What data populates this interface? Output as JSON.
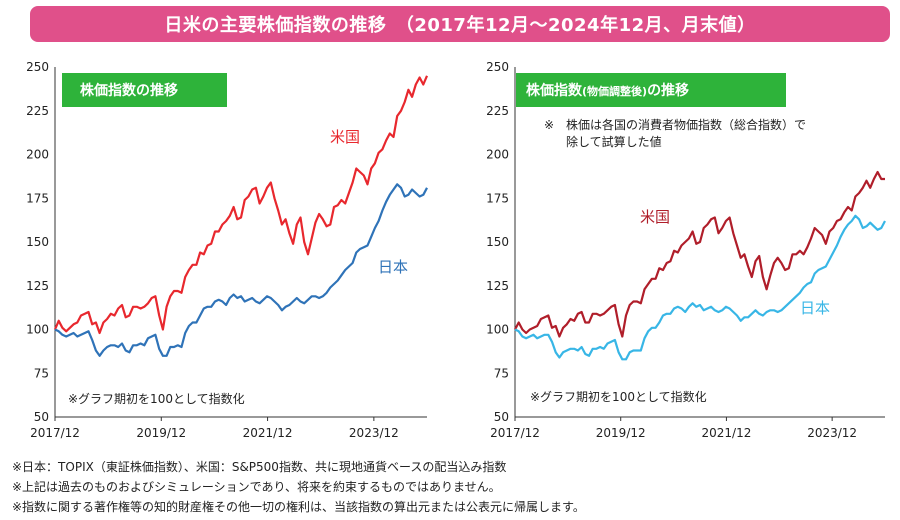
{
  "banner": {
    "title": "日米の主要株価指数の推移　（2017年12月～2024年12月、月末値）"
  },
  "colors": {
    "banner": "#e0508a",
    "title_box": "#2eb33a",
    "us_left": "#e8282e",
    "jp_left": "#2f73b8",
    "us_right": "#b01e2a",
    "jp_right": "#38b6e6"
  },
  "footnotes": [
    "※日本：TOPIX（東証株価指数）、米国：S&P500指数、共に現地通貨ベースの配当込み指数",
    "※上記は過去のものおよびシミュレーションであり、将来を約束するものではありません。",
    "※指数に関する著作権等の知的財産権その他一切の権利は、当該指数の算出元または公表元に帰属します。"
  ],
  "chart_data": [
    {
      "type": "line",
      "title": "株価指数の推移",
      "note": "※グラフ期初を100として指数化",
      "x_ticks": [
        "2017/12",
        "2019/12",
        "2021/12",
        "2023/12"
      ],
      "xlim": [
        "2017/12",
        "2024/12"
      ],
      "ylim": [
        50,
        250
      ],
      "y_ticks": [
        "50",
        "75",
        "100",
        "125",
        "150",
        "175",
        "200",
        "225",
        "250"
      ],
      "grid": false,
      "series": [
        {
          "name": "米国",
          "color": "#e8282e",
          "values": [
            100,
            105,
            101,
            99,
            101,
            103,
            104,
            108,
            109,
            110,
            103,
            104,
            98,
            104,
            106,
            109,
            108,
            112,
            114,
            107,
            108,
            113,
            113,
            112,
            113,
            115,
            118,
            119,
            108,
            100,
            113,
            119,
            122,
            122,
            121,
            130,
            134,
            137,
            137,
            144,
            143,
            148,
            149,
            156,
            156,
            160,
            162,
            165,
            170,
            163,
            164,
            174,
            176,
            180,
            181,
            172,
            176,
            181,
            184,
            175,
            168,
            160,
            163,
            155,
            149,
            160,
            164,
            150,
            143,
            152,
            161,
            166,
            163,
            159,
            160,
            170,
            171,
            174,
            172,
            178,
            184,
            192,
            190,
            188,
            183,
            192,
            195,
            201,
            203,
            208,
            212,
            210,
            222,
            225,
            230,
            237,
            233,
            240,
            244,
            240,
            245
          ]
        },
        {
          "name": "日本",
          "color": "#2f73b8",
          "values": [
            100,
            99,
            97,
            96,
            97,
            98,
            96,
            97,
            98,
            99,
            94,
            88,
            85,
            88,
            90,
            91,
            91,
            90,
            92,
            88,
            87,
            91,
            91,
            92,
            91,
            95,
            96,
            97,
            89,
            85,
            85,
            90,
            90,
            91,
            90,
            98,
            102,
            104,
            104,
            108,
            112,
            113,
            113,
            116,
            117,
            116,
            114,
            118,
            120,
            118,
            119,
            116,
            117,
            118,
            116,
            115,
            117,
            119,
            118,
            116,
            114,
            111,
            113,
            114,
            116,
            118,
            116,
            115,
            117,
            119,
            119,
            118,
            119,
            121,
            124,
            126,
            128,
            131,
            134,
            136,
            138,
            144,
            146,
            147,
            148,
            153,
            158,
            162,
            168,
            173,
            177,
            180,
            183,
            181,
            176,
            177,
            180,
            178,
            176,
            177,
            181
          ]
        }
      ]
    },
    {
      "type": "line",
      "title": "株価指数",
      "title_small": "(物価調整後)",
      "title_suffix": "の推移",
      "note": "※グラフ期初を100として指数化",
      "annotation_lines": [
        "※　株価は各国の消費者物価指数（総合指数）で",
        "除して試算した値"
      ],
      "x_ticks": [
        "2017/12",
        "2019/12",
        "2021/12",
        "2023/12"
      ],
      "xlim": [
        "2017/12",
        "2024/12"
      ],
      "ylim": [
        50,
        250
      ],
      "y_ticks": [
        "50",
        "75",
        "100",
        "125",
        "150",
        "175",
        "200",
        "225",
        "250"
      ],
      "grid": false,
      "series": [
        {
          "name": "米国",
          "color": "#b01e2a",
          "values": [
            100,
            104,
            100,
            98,
            100,
            101,
            102,
            106,
            107,
            108,
            101,
            102,
            96,
            101,
            103,
            106,
            105,
            109,
            110,
            104,
            104,
            109,
            109,
            108,
            109,
            111,
            113,
            114,
            103,
            96,
            108,
            114,
            116,
            116,
            115,
            123,
            126,
            129,
            129,
            135,
            134,
            138,
            139,
            145,
            144,
            148,
            150,
            152,
            156,
            149,
            150,
            158,
            160,
            163,
            164,
            155,
            158,
            162,
            164,
            155,
            148,
            141,
            143,
            136,
            130,
            139,
            142,
            130,
            123,
            131,
            138,
            141,
            138,
            134,
            135,
            143,
            143,
            145,
            143,
            147,
            152,
            158,
            156,
            154,
            149,
            156,
            158,
            162,
            163,
            167,
            170,
            168,
            176,
            178,
            181,
            185,
            181,
            186,
            190,
            186,
            186
          ]
        },
        {
          "name": "日本",
          "color": "#38b6e6",
          "values": [
            100,
            99,
            96,
            95,
            96,
            97,
            95,
            96,
            97,
            97,
            93,
            87,
            84,
            87,
            88,
            89,
            89,
            88,
            90,
            86,
            85,
            89,
            89,
            90,
            89,
            92,
            93,
            94,
            87,
            83,
            83,
            87,
            88,
            88,
            88,
            95,
            99,
            101,
            101,
            104,
            108,
            109,
            109,
            112,
            113,
            112,
            110,
            113,
            115,
            113,
            114,
            111,
            112,
            113,
            111,
            110,
            111,
            113,
            112,
            110,
            108,
            105,
            107,
            107,
            109,
            111,
            109,
            108,
            110,
            111,
            111,
            110,
            111,
            113,
            115,
            117,
            119,
            121,
            124,
            126,
            127,
            132,
            134,
            135,
            136,
            140,
            144,
            148,
            153,
            157,
            160,
            162,
            165,
            163,
            158,
            159,
            161,
            159,
            157,
            158,
            162
          ]
        }
      ]
    }
  ]
}
